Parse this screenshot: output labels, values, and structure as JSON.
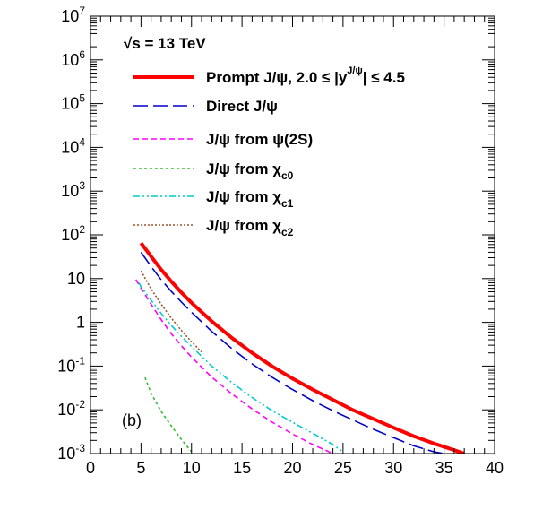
{
  "chart_data": {
    "type": "line",
    "title": "",
    "xlabel": "",
    "ylabel": "",
    "xlim": [
      0,
      40
    ],
    "ylim": [
      0.001,
      10000000
    ],
    "y_scale": "log",
    "grid": false,
    "legend_placement": "top-left",
    "annotations": {
      "energy": "√s = 13 TeV",
      "panel": "(b)"
    },
    "x_ticks": [
      {
        "value": 0,
        "label": "0"
      },
      {
        "value": 5,
        "label": "5"
      },
      {
        "value": 10,
        "label": "10"
      },
      {
        "value": 15,
        "label": "15"
      },
      {
        "value": 20,
        "label": "20"
      },
      {
        "value": 25,
        "label": "25"
      },
      {
        "value": 30,
        "label": "30"
      },
      {
        "value": 35,
        "label": "35"
      },
      {
        "value": 40,
        "label": "40"
      }
    ],
    "y_ticks": [
      {
        "value": 0.001,
        "base": "10",
        "exp": "-3"
      },
      {
        "value": 0.01,
        "base": "10",
        "exp": "-2"
      },
      {
        "value": 0.1,
        "base": "10",
        "exp": "-1"
      },
      {
        "value": 1,
        "base": "1",
        "exp": ""
      },
      {
        "value": 10,
        "base": "10",
        "exp": ""
      },
      {
        "value": 100,
        "base": "10",
        "exp": "2"
      },
      {
        "value": 1000,
        "base": "10",
        "exp": "3"
      },
      {
        "value": 10000,
        "base": "10",
        "exp": "4"
      },
      {
        "value": 100000,
        "base": "10",
        "exp": "5"
      },
      {
        "value": 1000000,
        "base": "10",
        "exp": "6"
      },
      {
        "value": 10000000,
        "base": "10",
        "exp": "7"
      }
    ],
    "series": [
      {
        "name": "Prompt J/ψ, 2.0 ≤ |y^J/ψ| ≤ 4.5",
        "legend": {
          "main": "Prompt J/ψ, 2.0 ≤ |y",
          "sup": "J/ψ",
          "tail": "| ≤ 4.5"
        },
        "color": "#ff0000",
        "dash": "",
        "width": 4,
        "x": [
          5,
          6,
          7,
          8,
          9,
          10,
          12,
          14,
          16,
          18,
          20,
          22,
          24,
          26,
          28,
          30,
          32,
          34,
          36,
          37
        ],
        "y": [
          65,
          32,
          16,
          8.6,
          4.8,
          2.8,
          1.06,
          0.44,
          0.2,
          0.098,
          0.052,
          0.029,
          0.017,
          0.0098,
          0.0062,
          0.0039,
          0.0025,
          0.0017,
          0.0012,
          0.001
        ]
      },
      {
        "name": "Direct J/ψ",
        "legend": {
          "main": "Direct J/ψ",
          "sup": "",
          "tail": ""
        },
        "color": "#0000cc",
        "dash": "16,6",
        "width": 1.6,
        "x": [
          5,
          6,
          7,
          8,
          9,
          10,
          12,
          14,
          16,
          18,
          20,
          22,
          24,
          26,
          28,
          30,
          32,
          34,
          35
        ],
        "y": [
          40,
          19,
          9.4,
          5.1,
          2.9,
          1.7,
          0.62,
          0.25,
          0.112,
          0.055,
          0.029,
          0.0162,
          0.0095,
          0.0058,
          0.0036,
          0.0023,
          0.0015,
          0.0011,
          0.001
        ]
      },
      {
        "name": "J/ψ from ψ(2S)",
        "legend": {
          "main": "J/ψ from ψ(2S)",
          "sup": "",
          "tail": ""
        },
        "color": "#ff00ff",
        "dash": "6,4",
        "width": 1.6,
        "x": [
          4.5,
          5,
          6,
          7,
          8,
          9,
          10,
          12,
          14,
          16,
          18,
          20,
          22,
          24
        ],
        "y": [
          9.5,
          6,
          2.6,
          1.15,
          0.55,
          0.29,
          0.16,
          0.056,
          0.023,
          0.0105,
          0.0052,
          0.0028,
          0.0016,
          0.001
        ]
      },
      {
        "name": "J/ψ from χc0",
        "legend": {
          "main": "J/ψ from χ",
          "sub": "c0"
        },
        "color": "#33bb33",
        "dash": "3,3",
        "width": 1.6,
        "x": [
          5.4,
          6,
          7,
          8,
          9,
          10
        ],
        "y": [
          0.055,
          0.024,
          0.0092,
          0.0043,
          0.0021,
          0.0011
        ]
      },
      {
        "name": "J/ψ from χc1",
        "legend": {
          "main": "J/ψ from χ",
          "sub": "c1"
        },
        "color": "#00cccc",
        "dash": "7,3,2,3,2,3",
        "width": 1.6,
        "x": [
          4.8,
          5,
          6,
          7,
          8,
          9,
          10,
          12,
          14,
          16,
          18,
          20,
          22,
          24,
          25
        ],
        "y": [
          8,
          6.5,
          3.2,
          1.6,
          0.85,
          0.48,
          0.28,
          0.1,
          0.042,
          0.019,
          0.0095,
          0.0052,
          0.0029,
          0.0016,
          0.0011
        ]
      },
      {
        "name": "J/ψ from χc2",
        "legend": {
          "main": "J/ψ from χ",
          "sub": "c2"
        },
        "color": "#a0522d",
        "dash": "2,2",
        "width": 1.6,
        "x": [
          5,
          6,
          7,
          8,
          9,
          10,
          11
        ],
        "y": [
          15,
          5.8,
          2.6,
          1.25,
          0.65,
          0.36,
          0.21
        ]
      }
    ]
  }
}
